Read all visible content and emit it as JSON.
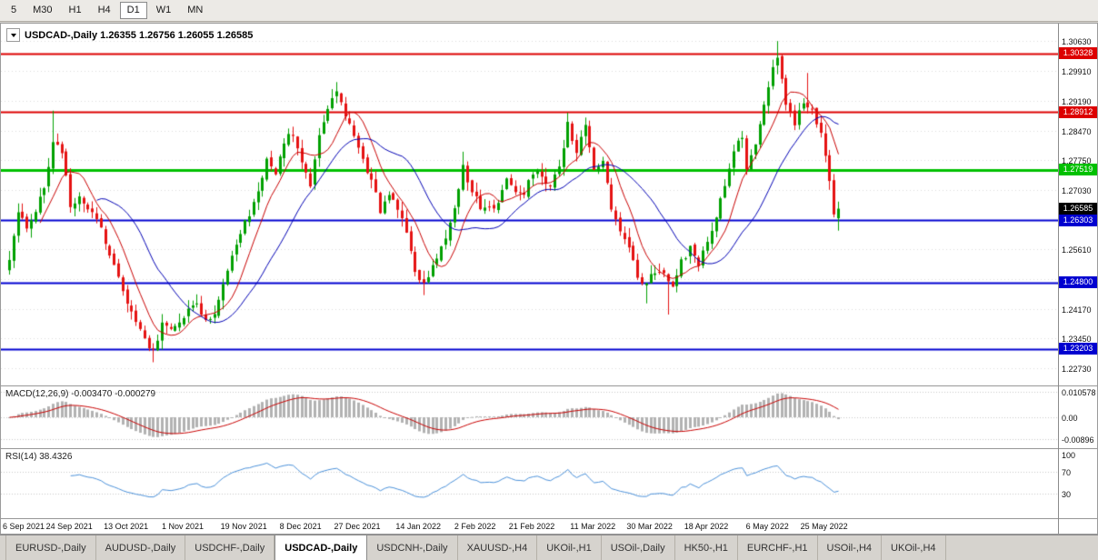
{
  "toolbar": {
    "timeframes": [
      {
        "label": "5",
        "active": false
      },
      {
        "label": "M30",
        "active": false
      },
      {
        "label": "H1",
        "active": false
      },
      {
        "label": "H4",
        "active": false
      },
      {
        "label": "D1",
        "active": true
      },
      {
        "label": "W1",
        "active": false
      },
      {
        "label": "MN",
        "active": false
      }
    ]
  },
  "chart": {
    "title_symbol": "USDCAD-,Daily",
    "title_ohlc": "1.26355 1.26756 1.26055 1.26585"
  },
  "chart_data": {
    "type": "candlestick",
    "symbol": "USDCAD",
    "timeframe": "Daily",
    "bars": 191,
    "price_range": {
      "top": 1.3105,
      "bottom": 1.2232
    },
    "price_axis_ticks": [
      "1.30630",
      "1.29910",
      "1.29190",
      "1.28470",
      "1.27750",
      "1.27030",
      "1.25610",
      "1.24890",
      "1.24170",
      "1.23450",
      "1.22730"
    ],
    "levels": [
      {
        "value": 1.30328,
        "label": "1.30328",
        "color": "#dd0000",
        "width": 2
      },
      {
        "value": 1.28912,
        "label": "1.28912",
        "color": "#dd0000",
        "width": 2
      },
      {
        "value": 1.27519,
        "label": "1.27519",
        "color": "#00c000",
        "width": 3
      },
      {
        "value": 1.26303,
        "label": "1.26303",
        "color": "#0000d0",
        "width": 2
      },
      {
        "value": 1.248,
        "label": "1.24800",
        "color": "#0000d0",
        "width": 2
      },
      {
        "value": 1.23203,
        "label": "1.23203",
        "color": "#0000d0",
        "width": 2
      }
    ],
    "current_price": {
      "value": 1.26585,
      "label": "1.26585",
      "bg": "#000000"
    },
    "last_candle": {
      "open": 1.26355,
      "high": 1.26756,
      "low": 1.26055,
      "close": 1.26585
    },
    "close_anchors": [
      [
        0,
        1.2535
      ],
      [
        2,
        1.264
      ],
      [
        4,
        1.262
      ],
      [
        6,
        1.2655
      ],
      [
        8,
        1.27
      ],
      [
        10,
        1.2815
      ],
      [
        12,
        1.28
      ],
      [
        14,
        1.2665
      ],
      [
        16,
        1.269
      ],
      [
        18,
        1.2655
      ],
      [
        20,
        1.2635
      ],
      [
        22,
        1.258
      ],
      [
        24,
        1.253
      ],
      [
        26,
        1.246
      ],
      [
        28,
        1.2405
      ],
      [
        30,
        1.236
      ],
      [
        32,
        1.2325
      ],
      [
        33,
        1.2312
      ],
      [
        35,
        1.2385
      ],
      [
        37,
        1.2368
      ],
      [
        39,
        1.239
      ],
      [
        41,
        1.2412
      ],
      [
        43,
        1.2432
      ],
      [
        45,
        1.239
      ],
      [
        47,
        1.2402
      ],
      [
        49,
        1.248
      ],
      [
        51,
        1.2545
      ],
      [
        53,
        1.26
      ],
      [
        55,
        1.265
      ],
      [
        57,
        1.27
      ],
      [
        59,
        1.278
      ],
      [
        61,
        1.274
      ],
      [
        63,
        1.282
      ],
      [
        65,
        1.2838
      ],
      [
        67,
        1.2775
      ],
      [
        69,
        1.2722
      ],
      [
        71,
        1.284
      ],
      [
        73,
        1.2908
      ],
      [
        75,
        1.294
      ],
      [
        77,
        1.2882
      ],
      [
        79,
        1.2832
      ],
      [
        81,
        1.2772
      ],
      [
        83,
        1.2732
      ],
      [
        85,
        1.2652
      ],
      [
        87,
        1.27
      ],
      [
        89,
        1.2662
      ],
      [
        91,
        1.2592
      ],
      [
        93,
        1.2502
      ],
      [
        95,
        1.2482
      ],
      [
        97,
        1.2515
      ],
      [
        99,
        1.2562
      ],
      [
        101,
        1.2625
      ],
      [
        103,
        1.2705
      ],
      [
        104,
        1.2758
      ],
      [
        106,
        1.2692
      ],
      [
        108,
        1.2665
      ],
      [
        110,
        1.2655
      ],
      [
        112,
        1.2675
      ],
      [
        114,
        1.273
      ],
      [
        116,
        1.2705
      ],
      [
        118,
        1.2702
      ],
      [
        120,
        1.275
      ],
      [
        122,
        1.2744
      ],
      [
        124,
        1.2706
      ],
      [
        126,
        1.2762
      ],
      [
        128,
        1.2862
      ],
      [
        130,
        1.28
      ],
      [
        132,
        1.2852
      ],
      [
        134,
        1.2762
      ],
      [
        136,
        1.2772
      ],
      [
        138,
        1.2662
      ],
      [
        140,
        1.2606
      ],
      [
        142,
        1.2562
      ],
      [
        144,
        1.2496
      ],
      [
        146,
        1.2476
      ],
      [
        148,
        1.2506
      ],
      [
        150,
        1.25
      ],
      [
        152,
        1.2476
      ],
      [
        154,
        1.253
      ],
      [
        156,
        1.256
      ],
      [
        158,
        1.2522
      ],
      [
        160,
        1.2576
      ],
      [
        162,
        1.264
      ],
      [
        164,
        1.271
      ],
      [
        166,
        1.279
      ],
      [
        168,
        1.2838
      ],
      [
        169,
        1.2762
      ],
      [
        171,
        1.2812
      ],
      [
        173,
        1.2902
      ],
      [
        175,
        1.3002
      ],
      [
        176,
        1.3032
      ],
      [
        177,
        1.2972
      ],
      [
        178,
        1.2902
      ],
      [
        180,
        1.2868
      ],
      [
        182,
        1.2922
      ],
      [
        184,
        1.289
      ],
      [
        186,
        1.2832
      ],
      [
        188,
        1.2722
      ],
      [
        189,
        1.2642
      ],
      [
        190,
        1.26585
      ]
    ],
    "wick_events": [
      {
        "i": 10,
        "high": 1.2895
      },
      {
        "i": 33,
        "low": 1.2288
      },
      {
        "i": 75,
        "high": 1.2964
      },
      {
        "i": 95,
        "low": 1.245
      },
      {
        "i": 104,
        "high": 1.2796
      },
      {
        "i": 128,
        "high": 1.289
      },
      {
        "i": 146,
        "low": 1.243
      },
      {
        "i": 151,
        "low": 1.2403
      },
      {
        "i": 176,
        "high": 1.3063
      },
      {
        "i": 183,
        "high": 1.2986
      }
    ],
    "x_labels": [
      {
        "i": 0,
        "label": "6 Sep 2021"
      },
      {
        "i": 14,
        "label": "24 Sep 2021"
      },
      {
        "i": 27,
        "label": "13 Oct 2021"
      },
      {
        "i": 40,
        "label": "1 Nov 2021"
      },
      {
        "i": 54,
        "label": "19 Nov 2021"
      },
      {
        "i": 67,
        "label": "8 Dec 2021"
      },
      {
        "i": 80,
        "label": "27 Dec 2021"
      },
      {
        "i": 94,
        "label": "14 Jan 2022"
      },
      {
        "i": 107,
        "label": "2 Feb 2022"
      },
      {
        "i": 120,
        "label": "21 Feb 2022"
      },
      {
        "i": 134,
        "label": "11 Mar 2022"
      },
      {
        "i": 147,
        "label": "30 Mar 2022"
      },
      {
        "i": 160,
        "label": "18 Apr 2022"
      },
      {
        "i": 174,
        "label": "6 May 2022"
      },
      {
        "i": 187,
        "label": "25 May 2022"
      }
    ],
    "ma": {
      "fast_period": 8,
      "slow_period": 21
    },
    "macd": {
      "label": "MACD(12,26,9)",
      "values": "-0.003470 -0.000279",
      "fast": 12,
      "slow": 26,
      "signal": 9,
      "axis": [
        "0.010578",
        "0.00",
        "-0.00896"
      ],
      "range": 0.0127
    },
    "rsi": {
      "label": "RSI(14)",
      "value": "38.4326",
      "period": 14,
      "axis": [
        "100",
        "70",
        "30"
      ],
      "dotted_levels": [
        70,
        30
      ]
    },
    "colors": {
      "up": "#00a000",
      "down": "#e51212",
      "ma_fast": "#c80000",
      "ma_slow": "#0000b4",
      "macd_hist": "#b2b2b2",
      "macd_signal": "#c80000",
      "rsi": "#4a90d9",
      "grid": "#dcdcdc",
      "dotted_level": "#c8c8c8"
    }
  },
  "tabs": [
    {
      "label": "EURUSD-,Daily",
      "active": false
    },
    {
      "label": "AUDUSD-,Daily",
      "active": false
    },
    {
      "label": "USDCHF-,Daily",
      "active": false
    },
    {
      "label": "USDCAD-,Daily",
      "active": true
    },
    {
      "label": "USDCNH-,Daily",
      "active": false
    },
    {
      "label": "XAUUSD-,H4",
      "active": false
    },
    {
      "label": "UKOil-,H1",
      "active": false
    },
    {
      "label": "USOil-,Daily",
      "active": false
    },
    {
      "label": "HK50-,H1",
      "active": false
    },
    {
      "label": "EURCHF-,H1",
      "active": false
    },
    {
      "label": "USOil-,H4",
      "active": false
    },
    {
      "label": "UKOil-,H4",
      "active": false
    }
  ]
}
